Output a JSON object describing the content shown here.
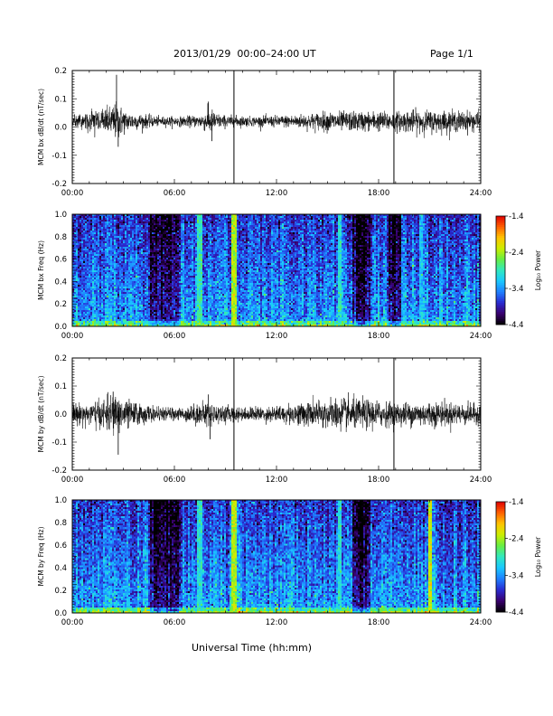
{
  "header": {
    "title": "2013/01/29  00:00–24:00 UT",
    "page": "Page 1/1"
  },
  "footer": {
    "xlabel": "Universal Time (hh:mm)"
  },
  "colors": {
    "trace": "#000000",
    "frame": "#000000",
    "marker": "#000000"
  },
  "colorbar": {
    "label": "Log₁₀ Power",
    "ticks": [
      "-1.4",
      "-2.4",
      "-3.4",
      "-4.4"
    ],
    "tick_values": [
      -1.4,
      -2.4,
      -3.4,
      -4.4
    ],
    "range": [
      -4.4,
      -1.4
    ],
    "colormap": [
      "#000000",
      "#3a006e",
      "#2a2ad0",
      "#1f7fff",
      "#19c8ff",
      "#30e8c0",
      "#66ee44",
      "#ccee00",
      "#ffc400",
      "#ff6000",
      "#e00000"
    ]
  },
  "chart_data": [
    {
      "type": "line",
      "ylabel": "MCM bx dB/dt (nT/sec)",
      "xlim": [
        0,
        24
      ],
      "ylim": [
        -0.2,
        0.2
      ],
      "xticks": [
        "00:00",
        "06:00",
        "12:00",
        "18:00",
        "24:00"
      ],
      "xtick_values": [
        0,
        6,
        12,
        18,
        24
      ],
      "yticks": [
        "0.2",
        "0.1",
        "0.0",
        "-0.1",
        "-0.2"
      ],
      "ytick_values": [
        0.2,
        0.1,
        0.0,
        -0.1,
        -0.2
      ],
      "vlines": [
        9.5,
        18.9
      ],
      "series": [
        {
          "values_note": "noise",
          "baseline": 0.02,
          "amplitude_profile": [
            [
              0,
              0.02
            ],
            [
              1.5,
              0.035
            ],
            [
              2.2,
              0.045
            ],
            [
              2.6,
              0.06
            ],
            [
              3.2,
              0.03
            ],
            [
              5.0,
              0.015
            ],
            [
              6.5,
              0.015
            ],
            [
              7.5,
              0.02
            ],
            [
              8.1,
              0.04
            ],
            [
              8.7,
              0.02
            ],
            [
              10.5,
              0.015
            ],
            [
              13,
              0.02
            ],
            [
              15,
              0.03
            ],
            [
              17,
              0.03
            ],
            [
              19,
              0.03
            ],
            [
              20,
              0.035
            ],
            [
              24,
              0.03
            ]
          ],
          "spikes": [
            [
              2.6,
              0.185
            ],
            [
              2.7,
              -0.07
            ],
            [
              8.0,
              0.09
            ],
            [
              8.2,
              -0.05
            ],
            [
              9.5,
              0.04
            ]
          ]
        }
      ]
    },
    {
      "type": "heatmap",
      "ylabel": "MCM bx Freq (Hz)",
      "xlim": [
        0,
        24
      ],
      "ylim": [
        0.0,
        1.0
      ],
      "xticks": [
        "00:00",
        "06:00",
        "12:00",
        "18:00",
        "24:00"
      ],
      "xtick_values": [
        0,
        6,
        12,
        18,
        24
      ],
      "yticks": [
        "1.0",
        "0.8",
        "0.6",
        "0.4",
        "0.2",
        "0.0"
      ],
      "ytick_values": [
        1.0,
        0.8,
        0.6,
        0.4,
        0.2,
        0.0
      ],
      "zlim": [
        -4.4,
        -1.4
      ],
      "quiet_intervals": [
        [
          4.5,
          6.4
        ],
        [
          16.5,
          17.5
        ],
        [
          18.6,
          19.3
        ]
      ],
      "bright_lines": [
        [
          9.5,
          -2.4
        ],
        [
          7.5,
          -2.9
        ],
        [
          15.7,
          -3.0
        ],
        [
          20.5,
          -3.2
        ]
      ]
    },
    {
      "type": "line",
      "ylabel": "MCM by dB/dt (nT/sec)",
      "xlim": [
        0,
        24
      ],
      "ylim": [
        -0.2,
        0.2
      ],
      "xticks": [
        "00:00",
        "06:00",
        "12:00",
        "18:00",
        "24:00"
      ],
      "xtick_values": [
        0,
        6,
        12,
        18,
        24
      ],
      "yticks": [
        "0.2",
        "0.1",
        "0.0",
        "-0.1",
        "-0.2"
      ],
      "ytick_values": [
        0.2,
        0.1,
        0.0,
        -0.1,
        -0.2
      ],
      "vlines": [
        9.5,
        18.9
      ],
      "series": [
        {
          "values_note": "noise",
          "baseline": 0.0,
          "amplitude_profile": [
            [
              0,
              0.03
            ],
            [
              1.5,
              0.04
            ],
            [
              2.5,
              0.06
            ],
            [
              3.5,
              0.04
            ],
            [
              5.0,
              0.02
            ],
            [
              6.5,
              0.02
            ],
            [
              7.8,
              0.04
            ],
            [
              8.5,
              0.03
            ],
            [
              10,
              0.02
            ],
            [
              12,
              0.025
            ],
            [
              14,
              0.04
            ],
            [
              16,
              0.05
            ],
            [
              17.5,
              0.045
            ],
            [
              19,
              0.035
            ],
            [
              21,
              0.04
            ],
            [
              24,
              0.03
            ]
          ],
          "spikes": [
            [
              2.7,
              -0.145
            ],
            [
              2.4,
              0.08
            ],
            [
              8.0,
              0.07
            ],
            [
              8.1,
              -0.09
            ],
            [
              9.5,
              0.05
            ]
          ]
        }
      ]
    },
    {
      "type": "heatmap",
      "ylabel": "MCM by Freq (Hz)",
      "xlim": [
        0,
        24
      ],
      "ylim": [
        0.0,
        1.0
      ],
      "xticks": [
        "00:00",
        "06:00",
        "12:00",
        "18:00",
        "24:00"
      ],
      "xtick_values": [
        0,
        6,
        12,
        18,
        24
      ],
      "yticks": [
        "1.0",
        "0.8",
        "0.6",
        "0.4",
        "0.2",
        "0.0"
      ],
      "ytick_values": [
        1.0,
        0.8,
        0.6,
        0.4,
        0.2,
        0.0
      ],
      "zlim": [
        -4.4,
        -1.4
      ],
      "quiet_intervals": [
        [
          4.5,
          6.4
        ],
        [
          16.5,
          17.5
        ]
      ],
      "bright_lines": [
        [
          21.0,
          -2.3
        ],
        [
          9.5,
          -2.4
        ],
        [
          15.7,
          -3.0
        ],
        [
          7.5,
          -3.0
        ]
      ]
    }
  ]
}
